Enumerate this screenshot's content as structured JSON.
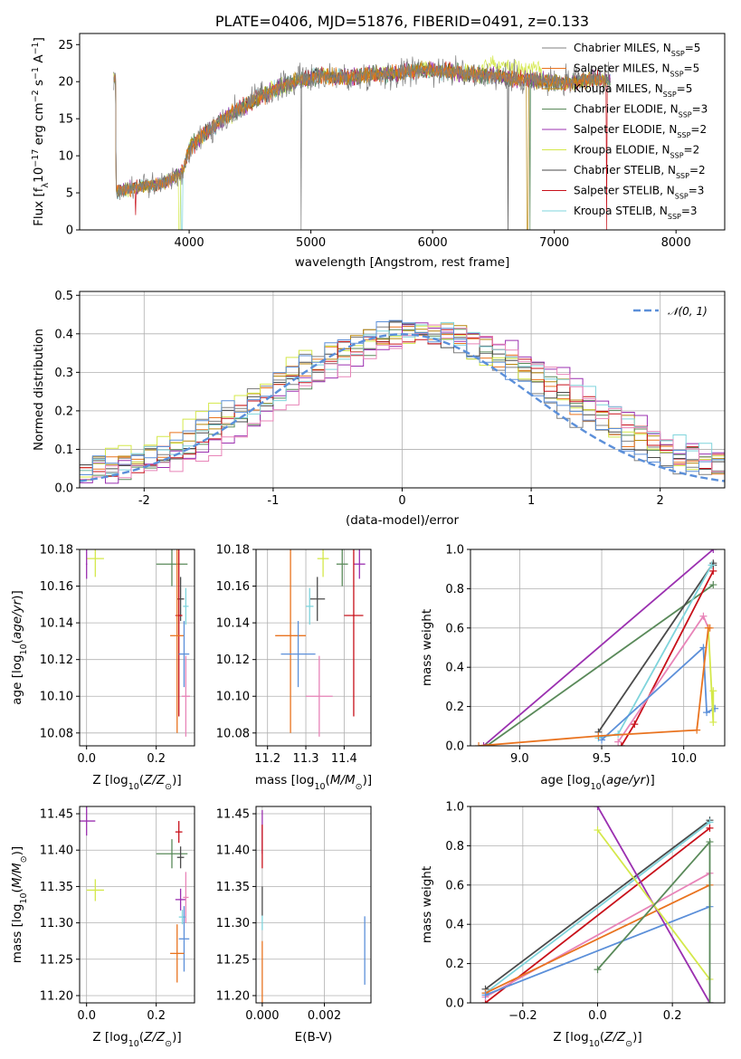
{
  "series_styles": [
    {
      "name": "Chabrier MILES",
      "nssp": "5",
      "color": "#808080"
    },
    {
      "name": "Salpeter MILES",
      "nssp": "5",
      "color": "#e9731f"
    },
    {
      "name": "Kroupa MILES",
      "nssp": "5",
      "color": "#b8860b"
    },
    {
      "name": "Chabrier ELODIE",
      "nssp": "3",
      "color": "#5a8a5a"
    },
    {
      "name": "Salpeter ELODIE",
      "nssp": "2",
      "color": "#9b30b0"
    },
    {
      "name": "Kroupa ELODIE",
      "nssp": "2",
      "color": "#d4e84a"
    },
    {
      "name": "Chabrier STELIB",
      "nssp": "2",
      "color": "#4a4a4a"
    },
    {
      "name": "Salpeter STELIB",
      "nssp": "3",
      "color": "#c8101a"
    },
    {
      "name": "Kroupa STELIB",
      "nssp": "3",
      "color": "#7fd4dc"
    }
  ],
  "chart_data": [
    {
      "id": "spectrum",
      "type": "line",
      "title": "PLATE=0406, MJD=51876, FIBERID=0491, z=0.133",
      "xlabel": "wavelength [Angstrom, rest frame]",
      "ylabel": "Flux [fλ10⁻¹⁷ erg cm⁻² s⁻¹ A⁻¹]",
      "xlim": [
        3100,
        8400
      ],
      "ylim": [
        0,
        26.5
      ],
      "xticks": [
        4000,
        5000,
        6000,
        7000,
        8000
      ],
      "yticks": [
        0,
        5,
        10,
        15,
        20,
        25
      ],
      "grid": false,
      "legend": "top-right",
      "continuum": {
        "x": [
          3400,
          3600,
          3800,
          3950,
          4000,
          4100,
          4300,
          4500,
          4700,
          4900,
          5100,
          5300,
          5500,
          5700,
          5900,
          6100,
          6300,
          6500,
          6700,
          6900,
          7100,
          7300,
          7450
        ],
        "y": [
          5.2,
          5.8,
          6.3,
          8.0,
          11.0,
          12.6,
          15.2,
          17.2,
          19.0,
          20.2,
          20.8,
          20.5,
          21.0,
          21.2,
          21.6,
          21.4,
          21.0,
          20.8,
          20.4,
          20.1,
          19.9,
          20.3,
          20.3
        ]
      }
    },
    {
      "id": "residuals",
      "type": "histogram",
      "xlabel": "(data-model)/error",
      "ylabel": "Normed distribution",
      "xlim": [
        -2.5,
        2.5
      ],
      "ylim": [
        0,
        0.51
      ],
      "xticks": [
        -2,
        -1,
        0,
        1,
        2
      ],
      "yticks": [
        0.0,
        0.1,
        0.2,
        0.3,
        0.4,
        0.5
      ],
      "grid": true,
      "legend": "top-right",
      "gaussian_label": "𝒩(0, 1)",
      "gaussian_color": "#5b8fd9",
      "bins": 50,
      "hist_colors": [
        "#808080",
        "#e9731f",
        "#b8860b",
        "#5a8a5a",
        "#9b30b0",
        "#d4e84a",
        "#4a4a4a",
        "#c8101a",
        "#7fd4dc",
        "#e884b8",
        "#5b8fd9"
      ]
    },
    {
      "id": "z-vs-age",
      "type": "errorbar",
      "xlabel": "Z [log₁₀(Z/Z⊙)]",
      "ylabel": "age  [log₁₀(age/yr)]",
      "xlim": [
        -0.02,
        0.31
      ],
      "ylim": [
        10.073,
        10.18
      ],
      "xticks": [
        0.0,
        0.2
      ],
      "yticks": [
        10.08,
        10.1,
        10.12,
        10.14,
        10.16,
        10.18
      ],
      "grid": true,
      "points": [
        {
          "color": "#d4e84a",
          "x": 0.025,
          "xerr": 0.025,
          "y": 10.175,
          "yerr": 0.01
        },
        {
          "color": "#9b30b0",
          "x": 0.0,
          "xerr": 0.002,
          "y": 10.172,
          "yerr": 0.008
        },
        {
          "color": "#5a8a5a",
          "x": 0.245,
          "xerr": 0.045,
          "y": 10.172,
          "yerr": 0.012
        },
        {
          "color": "#4a4a4a",
          "x": 0.27,
          "xerr": 0.01,
          "y": 10.153,
          "yerr": 0.012
        },
        {
          "color": "#c8101a",
          "x": 0.265,
          "xerr": 0.01,
          "y": 10.144,
          "yerr": 0.055
        },
        {
          "color": "#e9731f",
          "x": 0.26,
          "xerr": 0.02,
          "y": 10.133,
          "yerr": 0.053
        },
        {
          "color": "#7fd4dc",
          "x": 0.285,
          "xerr": 0.008,
          "y": 10.149,
          "yerr": 0.01
        },
        {
          "color": "#5b8fd9",
          "x": 0.28,
          "xerr": 0.015,
          "y": 10.123,
          "yerr": 0.018
        },
        {
          "color": "#e884b8",
          "x": 0.285,
          "xerr": 0.012,
          "y": 10.1,
          "yerr": 0.022
        }
      ]
    },
    {
      "id": "mass-vs-age",
      "type": "errorbar",
      "xlabel": "mass [log₁₀(M/M⊙)]",
      "ylabel": "",
      "xlim": [
        11.17,
        11.47
      ],
      "ylim": [
        10.073,
        10.18
      ],
      "xticks": [
        11.2,
        11.3,
        11.4
      ],
      "yticks": [
        10.08,
        10.1,
        10.12,
        10.14,
        10.16,
        10.18
      ],
      "grid": true,
      "points": [
        {
          "color": "#d4e84a",
          "x": 11.345,
          "xerr": 0.015,
          "y": 10.175,
          "yerr": 0.01
        },
        {
          "color": "#9b30b0",
          "x": 11.44,
          "xerr": 0.015,
          "y": 10.172,
          "yerr": 0.008
        },
        {
          "color": "#5a8a5a",
          "x": 11.395,
          "xerr": 0.015,
          "y": 10.172,
          "yerr": 0.012
        },
        {
          "color": "#4a4a4a",
          "x": 11.33,
          "xerr": 0.02,
          "y": 10.153,
          "yerr": 0.012
        },
        {
          "color": "#c8101a",
          "x": 11.425,
          "xerr": 0.025,
          "y": 10.144,
          "yerr": 0.055
        },
        {
          "color": "#e9731f",
          "x": 11.26,
          "xerr": 0.04,
          "y": 10.133,
          "yerr": 0.053
        },
        {
          "color": "#7fd4dc",
          "x": 11.31,
          "xerr": 0.01,
          "y": 10.149,
          "yerr": 0.01
        },
        {
          "color": "#5b8fd9",
          "x": 11.28,
          "xerr": 0.045,
          "y": 10.123,
          "yerr": 0.018
        },
        {
          "color": "#e884b8",
          "x": 11.335,
          "xerr": 0.035,
          "y": 10.1,
          "yerr": 0.022
        }
      ]
    },
    {
      "id": "age-vs-weight",
      "type": "line",
      "xlabel": "age  [log₁₀(age/yr)]",
      "ylabel": "mass weight",
      "xlim": [
        8.7,
        10.25
      ],
      "ylim": [
        0,
        1.0
      ],
      "xticks": [
        9.0,
        9.5,
        10.0
      ],
      "yticks": [
        0.0,
        0.2,
        0.4,
        0.6,
        0.8,
        1.0
      ],
      "grid": true,
      "lines": [
        {
          "color": "#9b30b0",
          "x": [
            8.78,
            10.18
          ],
          "y": [
            0.0,
            1.0
          ]
        },
        {
          "color": "#5a8a5a",
          "x": [
            8.8,
            10.18
          ],
          "y": [
            0.0,
            0.82
          ]
        },
        {
          "color": "#4a4a4a",
          "x": [
            9.48,
            10.18,
            10.18
          ],
          "y": [
            0.07,
            0.93,
            0.92
          ]
        },
        {
          "color": "#c8101a",
          "x": [
            9.62,
            9.7,
            10.18
          ],
          "y": [
            0.0,
            0.11,
            0.89
          ]
        },
        {
          "color": "#7fd4dc",
          "x": [
            9.48,
            9.6,
            10.17
          ],
          "y": [
            0.04,
            0.06,
            0.92
          ]
        },
        {
          "color": "#e884b8",
          "x": [
            9.6,
            10.12,
            10.15
          ],
          "y": [
            0.02,
            0.66,
            0.6
          ]
        },
        {
          "color": "#5b8fd9",
          "x": [
            9.5,
            10.12,
            10.14,
            10.19
          ],
          "y": [
            0.03,
            0.5,
            0.17,
            0.19
          ]
        },
        {
          "color": "#d4e84a",
          "x": [
            10.15,
            10.18,
            10.18
          ],
          "y": [
            0.6,
            0.12,
            0.28
          ]
        },
        {
          "color": "#e9731f",
          "x": [
            8.75,
            9.48,
            10.08,
            10.15,
            10.16
          ],
          "y": [
            0.0,
            0.05,
            0.08,
            0.6,
            0.6
          ]
        }
      ]
    },
    {
      "id": "z-vs-mass",
      "type": "errorbar",
      "xlabel": "Z [log₁₀(Z/Z⊙)]",
      "ylabel": "mass [log₁₀(M/M⊙)]",
      "xlim": [
        -0.02,
        0.31
      ],
      "ylim": [
        11.19,
        11.46
      ],
      "xticks": [
        0.0,
        0.2
      ],
      "yticks": [
        11.2,
        11.25,
        11.3,
        11.35,
        11.4,
        11.45
      ],
      "grid": true,
      "points": [
        {
          "color": "#9b30b0",
          "x": 0.0,
          "xerr": 0.025,
          "y": 11.44,
          "yerr": 0.02
        },
        {
          "color": "#d4e84a",
          "x": 0.025,
          "xerr": 0.025,
          "y": 11.345,
          "yerr": 0.015
        },
        {
          "color": "#c8101a",
          "x": 0.265,
          "xerr": 0.01,
          "y": 11.425,
          "yerr": 0.015
        },
        {
          "color": "#5a8a5a",
          "x": 0.245,
          "xerr": 0.045,
          "y": 11.395,
          "yerr": 0.02
        },
        {
          "color": "#4a4a4a",
          "x": 0.27,
          "xerr": 0.01,
          "y": 11.39,
          "yerr": 0.015
        },
        {
          "color": "#9b30b0",
          "x": 0.27,
          "xerr": 0.015,
          "y": 11.332,
          "yerr": 0.015
        },
        {
          "color": "#e884b8",
          "x": 0.285,
          "xerr": 0.008,
          "y": 11.335,
          "yerr": 0.035
        },
        {
          "color": "#7fd4dc",
          "x": 0.275,
          "xerr": 0.01,
          "y": 11.308,
          "yerr": 0.01
        },
        {
          "color": "#5b8fd9",
          "x": 0.28,
          "xerr": 0.015,
          "y": 11.278,
          "yerr": 0.045
        },
        {
          "color": "#e9731f",
          "x": 0.26,
          "xerr": 0.02,
          "y": 11.258,
          "yerr": 0.04
        }
      ]
    },
    {
      "id": "ebv-vs-mass",
      "type": "errorbar",
      "xlabel": "E(B-V)",
      "ylabel": "",
      "xlim": [
        -0.0002,
        0.0035
      ],
      "ylim": [
        11.19,
        11.46
      ],
      "xticks": [
        0.0,
        0.002
      ],
      "xticklabels": [
        "0.000",
        "0.002"
      ],
      "yticks": [
        11.2,
        11.25,
        11.3,
        11.35,
        11.4,
        11.45
      ],
      "grid": true,
      "points": [
        {
          "color": "#9b30b0",
          "x": 0.0,
          "xerr": 0,
          "y": 11.425,
          "yerr": 0.03
        },
        {
          "color": "#c8101a",
          "x": 0.0,
          "xerr": 0,
          "y": 11.405,
          "yerr": 0.03
        },
        {
          "color": "#4a4a4a",
          "x": 0.0,
          "xerr": 0,
          "y": 11.33,
          "yerr": 0.02
        },
        {
          "color": "#e9731f",
          "x": 0.0,
          "xerr": 0,
          "y": 11.23,
          "yerr": 0.045
        },
        {
          "color": "#7fd4dc",
          "x": 0.0,
          "xerr": 0,
          "y": 11.3,
          "yerr": 0.01
        },
        {
          "color": "#5b8fd9",
          "x": 0.0033,
          "xerr": 0,
          "y": 11.262,
          "yerr": 0.047
        }
      ]
    },
    {
      "id": "z-vs-weight",
      "type": "line",
      "xlabel": "Z [log₁₀(Z/Z⊙)]",
      "ylabel": "mass weight",
      "xlim": [
        -0.34,
        0.34
      ],
      "ylim": [
        0,
        1.0
      ],
      "xticks": [
        -0.2,
        0.0,
        0.2
      ],
      "yticks": [
        0.0,
        0.2,
        0.4,
        0.6,
        0.8,
        1.0
      ],
      "grid": true,
      "lines": [
        {
          "color": "#4a4a4a",
          "x": [
            -0.3,
            0.3
          ],
          "y": [
            0.07,
            0.93
          ]
        },
        {
          "color": "#7fd4dc",
          "x": [
            -0.3,
            0.3
          ],
          "y": [
            0.05,
            0.92
          ]
        },
        {
          "color": "#c8101a",
          "x": [
            -0.3,
            0.3
          ],
          "y": [
            0.0,
            0.89
          ]
        },
        {
          "color": "#e884b8",
          "x": [
            -0.3,
            0.3
          ],
          "y": [
            0.03,
            0.66
          ]
        },
        {
          "color": "#e9731f",
          "x": [
            -0.3,
            0.3
          ],
          "y": [
            0.05,
            0.6
          ]
        },
        {
          "color": "#5b8fd9",
          "x": [
            -0.3,
            0.3
          ],
          "y": [
            0.04,
            0.49
          ]
        },
        {
          "color": "#9b30b0",
          "x": [
            0.0,
            0.3
          ],
          "y": [
            1.0,
            0.0
          ]
        },
        {
          "color": "#d4e84a",
          "x": [
            0.0,
            0.3
          ],
          "y": [
            0.88,
            0.12
          ]
        },
        {
          "color": "#5a8a5a",
          "x": [
            0.0,
            0.3,
            0.3
          ],
          "y": [
            0.17,
            0.82,
            0.0
          ]
        }
      ]
    }
  ]
}
